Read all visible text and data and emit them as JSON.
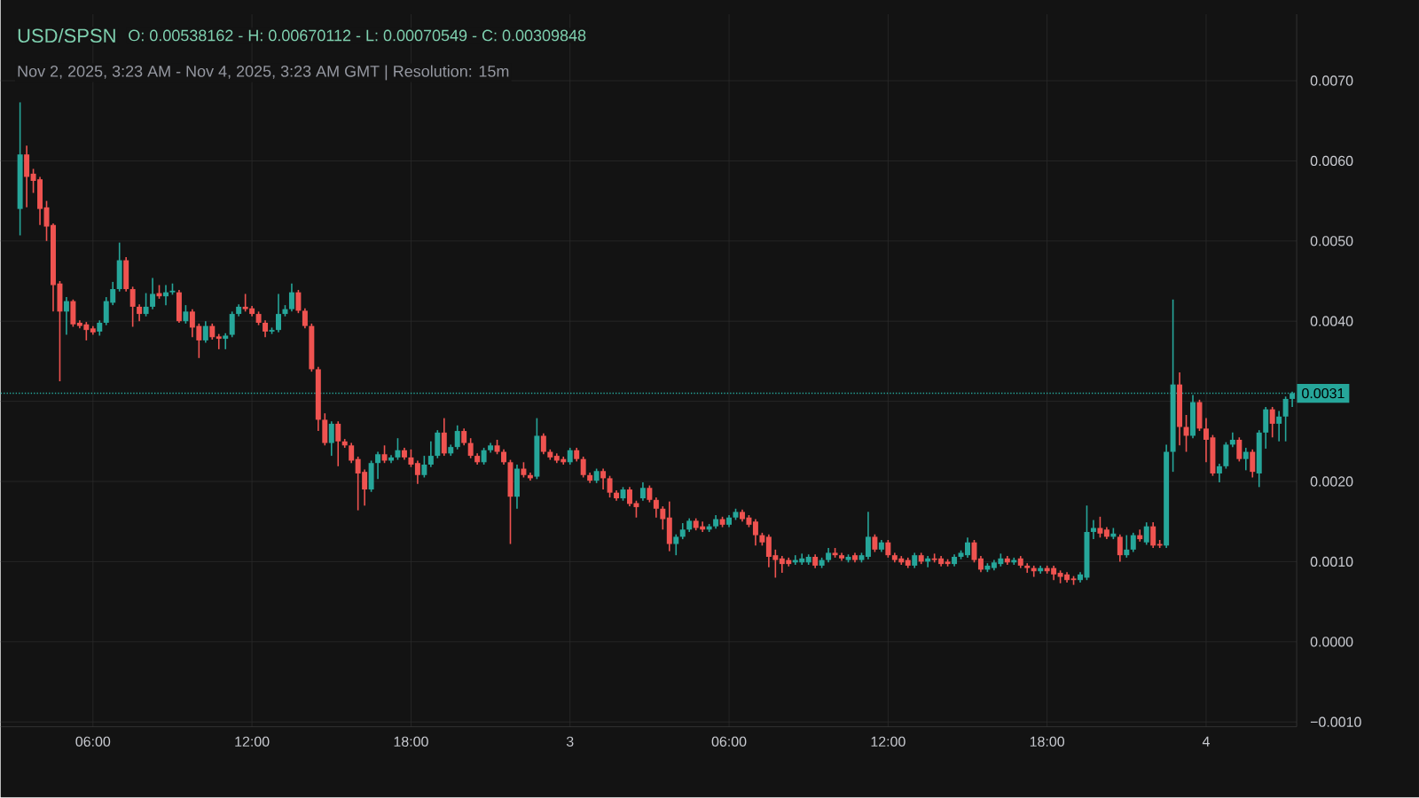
{
  "chart_data": {
    "type": "candlestick",
    "title": "USD/SPSN",
    "subtitle": "Nov 2, 2025, 3:23 AM - Nov 4, 2025, 3:23 AM GMT   |   Resolution: 15m",
    "annotations": [
      "O: 0.00538162 - H: 0.00670112 - L: 0.00070549 - C: 0.00309848"
    ],
    "x": [
      "2025-11-02T03:15",
      "2025-11-02T03:30",
      "2025-11-02T03:45",
      "2025-11-02T04:00",
      "2025-11-02T04:15",
      "2025-11-02T04:30",
      "2025-11-02T04:45",
      "2025-11-02T05:00",
      "2025-11-02T05:15",
      "2025-11-02T05:30",
      "2025-11-02T05:45",
      "2025-11-02T06:00",
      "2025-11-02T06:15",
      "2025-11-02T06:30",
      "2025-11-02T06:45",
      "2025-11-02T07:00",
      "2025-11-02T07:15",
      "2025-11-02T07:30",
      "2025-11-02T07:45",
      "2025-11-02T08:00",
      "2025-11-02T08:15",
      "2025-11-02T08:30",
      "2025-11-02T08:45",
      "2025-11-02T09:00",
      "2025-11-02T09:15",
      "2025-11-02T09:30",
      "2025-11-02T09:45",
      "2025-11-02T10:00",
      "2025-11-02T10:15",
      "2025-11-02T10:30",
      "2025-11-02T10:45",
      "2025-11-02T11:00",
      "2025-11-02T11:15",
      "2025-11-02T11:30",
      "2025-11-02T11:45",
      "2025-11-02T12:00",
      "2025-11-02T12:15",
      "2025-11-02T12:30",
      "2025-11-02T12:45",
      "2025-11-02T13:00",
      "2025-11-02T13:15",
      "2025-11-02T13:30",
      "2025-11-02T13:45",
      "2025-11-02T14:00",
      "2025-11-02T14:15",
      "2025-11-02T14:30",
      "2025-11-02T14:45",
      "2025-11-02T15:00",
      "2025-11-02T15:15",
      "2025-11-02T15:30",
      "2025-11-02T15:45",
      "2025-11-02T16:00",
      "2025-11-02T16:15",
      "2025-11-02T16:30",
      "2025-11-02T16:45",
      "2025-11-02T17:00",
      "2025-11-02T17:15",
      "2025-11-02T17:30",
      "2025-11-02T17:45",
      "2025-11-02T18:00",
      "2025-11-02T18:15",
      "2025-11-02T18:30",
      "2025-11-02T18:45",
      "2025-11-02T19:00",
      "2025-11-02T19:15",
      "2025-11-02T19:30",
      "2025-11-02T19:45",
      "2025-11-02T20:00",
      "2025-11-02T20:15",
      "2025-11-02T20:30",
      "2025-11-02T20:45",
      "2025-11-02T21:00",
      "2025-11-02T21:15",
      "2025-11-02T21:30",
      "2025-11-02T21:45",
      "2025-11-02T22:00",
      "2025-11-02T22:15",
      "2025-11-02T22:30",
      "2025-11-02T22:45",
      "2025-11-02T23:00",
      "2025-11-02T23:15",
      "2025-11-02T23:30",
      "2025-11-02T23:45",
      "2025-11-03T00:00",
      "2025-11-03T00:15",
      "2025-11-03T00:30",
      "2025-11-03T00:45",
      "2025-11-03T01:00",
      "2025-11-03T01:15",
      "2025-11-03T01:30",
      "2025-11-03T01:45",
      "2025-11-03T02:00",
      "2025-11-03T02:15",
      "2025-11-03T02:30",
      "2025-11-03T02:45",
      "2025-11-03T03:00",
      "2025-11-03T03:15",
      "2025-11-03T03:30",
      "2025-11-03T03:45",
      "2025-11-03T04:00",
      "2025-11-03T04:15",
      "2025-11-03T04:30",
      "2025-11-03T04:45",
      "2025-11-03T05:00",
      "2025-11-03T05:15",
      "2025-11-03T05:30",
      "2025-11-03T05:45",
      "2025-11-03T06:00",
      "2025-11-03T06:15",
      "2025-11-03T06:30",
      "2025-11-03T06:45",
      "2025-11-03T07:00",
      "2025-11-03T07:15",
      "2025-11-03T07:30",
      "2025-11-03T07:45",
      "2025-11-03T08:00",
      "2025-11-03T08:15",
      "2025-11-03T08:30",
      "2025-11-03T08:45",
      "2025-11-03T09:00",
      "2025-11-03T09:15",
      "2025-11-03T09:30",
      "2025-11-03T09:45",
      "2025-11-03T10:00",
      "2025-11-03T10:15",
      "2025-11-03T10:30",
      "2025-11-03T10:45",
      "2025-11-03T11:00",
      "2025-11-03T11:15",
      "2025-11-03T11:30",
      "2025-11-03T11:45",
      "2025-11-03T12:00",
      "2025-11-03T12:15",
      "2025-11-03T12:30",
      "2025-11-03T12:45",
      "2025-11-03T13:00",
      "2025-11-03T13:15",
      "2025-11-03T13:30",
      "2025-11-03T13:45",
      "2025-11-03T14:00",
      "2025-11-03T14:15",
      "2025-11-03T14:30",
      "2025-11-03T14:45",
      "2025-11-03T15:00",
      "2025-11-03T15:15",
      "2025-11-03T15:30",
      "2025-11-03T15:45",
      "2025-11-03T16:00",
      "2025-11-03T16:15",
      "2025-11-03T16:30",
      "2025-11-03T16:45",
      "2025-11-03T17:00",
      "2025-11-03T17:15",
      "2025-11-03T17:30",
      "2025-11-03T17:45",
      "2025-11-03T18:00",
      "2025-11-03T18:15",
      "2025-11-03T18:30",
      "2025-11-03T18:45",
      "2025-11-03T19:00",
      "2025-11-03T19:15",
      "2025-11-03T19:30",
      "2025-11-03T19:45",
      "2025-11-03T20:00",
      "2025-11-03T20:15",
      "2025-11-03T20:30",
      "2025-11-03T20:45",
      "2025-11-03T21:00",
      "2025-11-03T21:15",
      "2025-11-03T21:30",
      "2025-11-03T21:45",
      "2025-11-03T22:00",
      "2025-11-03T22:15",
      "2025-11-03T22:30",
      "2025-11-03T22:45",
      "2025-11-03T23:00",
      "2025-11-03T23:15",
      "2025-11-03T23:30",
      "2025-11-03T23:45",
      "2025-11-04T00:00",
      "2025-11-04T00:15",
      "2025-11-04T00:30",
      "2025-11-04T00:45",
      "2025-11-04T01:00",
      "2025-11-04T01:15",
      "2025-11-04T01:30",
      "2025-11-04T01:45",
      "2025-11-04T02:00",
      "2025-11-04T02:15",
      "2025-11-04T02:30",
      "2025-11-04T02:45",
      "2025-11-04T03:00",
      "2025-11-04T03:15"
    ],
    "ohlc": [
      [
        0.0054,
        0.00673,
        0.00507,
        0.00608
      ],
      [
        0.00608,
        0.00619,
        0.00542,
        0.0058
      ],
      [
        0.00584,
        0.0059,
        0.0056,
        0.00575
      ],
      [
        0.00577,
        0.0058,
        0.0052,
        0.0054
      ],
      [
        0.00542,
        0.0055,
        0.005,
        0.00518
      ],
      [
        0.0052,
        0.00522,
        0.00412,
        0.00445
      ],
      [
        0.00447,
        0.0045,
        0.00325,
        0.00412
      ],
      [
        0.00412,
        0.0043,
        0.00383,
        0.00425
      ],
      [
        0.00425,
        0.00427,
        0.00393,
        0.00396
      ],
      [
        0.00398,
        0.00401,
        0.00391,
        0.00394
      ],
      [
        0.00396,
        0.00399,
        0.00376,
        0.00389
      ],
      [
        0.00391,
        0.00394,
        0.00383,
        0.00386
      ],
      [
        0.00387,
        0.00401,
        0.00382,
        0.00398
      ],
      [
        0.00398,
        0.0043,
        0.00395,
        0.00425
      ],
      [
        0.00423,
        0.00449,
        0.0042,
        0.0044
      ],
      [
        0.0044,
        0.00498,
        0.00437,
        0.00476
      ],
      [
        0.00476,
        0.0048,
        0.00437,
        0.0044
      ],
      [
        0.0044,
        0.00443,
        0.00393,
        0.00418
      ],
      [
        0.00418,
        0.00421,
        0.004,
        0.00409
      ],
      [
        0.00409,
        0.00435,
        0.00406,
        0.00418
      ],
      [
        0.00418,
        0.00454,
        0.00415,
        0.00434
      ],
      [
        0.00435,
        0.00445,
        0.00428,
        0.00431
      ],
      [
        0.00431,
        0.00445,
        0.0042,
        0.00436
      ],
      [
        0.00436,
        0.00447,
        0.00433,
        0.00438
      ],
      [
        0.00436,
        0.00439,
        0.00398,
        0.004
      ],
      [
        0.004,
        0.0042,
        0.00397,
        0.00412
      ],
      [
        0.00412,
        0.00415,
        0.0038,
        0.00392
      ],
      [
        0.00394,
        0.00397,
        0.00354,
        0.00376
      ],
      [
        0.00376,
        0.004,
        0.00373,
        0.00394
      ],
      [
        0.00394,
        0.00397,
        0.00377,
        0.0038
      ],
      [
        0.00381,
        0.00384,
        0.00365,
        0.00378
      ],
      [
        0.00378,
        0.00385,
        0.00365,
        0.00382
      ],
      [
        0.00383,
        0.00412,
        0.0038,
        0.00409
      ],
      [
        0.00409,
        0.00421,
        0.00406,
        0.00418
      ],
      [
        0.00418,
        0.00434,
        0.00412,
        0.00415
      ],
      [
        0.00416,
        0.00419,
        0.00406,
        0.00409
      ],
      [
        0.00409,
        0.00412,
        0.00395,
        0.00398
      ],
      [
        0.00398,
        0.00401,
        0.0038,
        0.00387
      ],
      [
        0.00387,
        0.00392,
        0.00384,
        0.00389
      ],
      [
        0.00389,
        0.00434,
        0.00386,
        0.00409
      ],
      [
        0.00409,
        0.0042,
        0.00406,
        0.00415
      ],
      [
        0.00415,
        0.00447,
        0.00412,
        0.00436
      ],
      [
        0.00436,
        0.00439,
        0.0041,
        0.00413
      ],
      [
        0.00413,
        0.00416,
        0.00391,
        0.00394
      ],
      [
        0.00394,
        0.00397,
        0.00337,
        0.0034
      ],
      [
        0.0034,
        0.00343,
        0.00263,
        0.00277
      ],
      [
        0.00277,
        0.00285,
        0.00245,
        0.00248
      ],
      [
        0.00248,
        0.00275,
        0.00232,
        0.00272
      ],
      [
        0.00272,
        0.00275,
        0.00219,
        0.0025
      ],
      [
        0.0025,
        0.00253,
        0.00242,
        0.00245
      ],
      [
        0.00245,
        0.00248,
        0.00223,
        0.00226
      ],
      [
        0.00228,
        0.00231,
        0.00164,
        0.0021
      ],
      [
        0.00212,
        0.00215,
        0.0017,
        0.0019
      ],
      [
        0.0019,
        0.00226,
        0.00187,
        0.00223
      ],
      [
        0.00223,
        0.00237,
        0.00203,
        0.00234
      ],
      [
        0.00234,
        0.00245,
        0.00223,
        0.00226
      ],
      [
        0.00226,
        0.00233,
        0.00223,
        0.0023
      ],
      [
        0.0023,
        0.00254,
        0.00227,
        0.00239
      ],
      [
        0.00239,
        0.00242,
        0.00227,
        0.0023
      ],
      [
        0.0023,
        0.0024,
        0.00218,
        0.00221
      ],
      [
        0.00223,
        0.00226,
        0.00197,
        0.00208
      ],
      [
        0.00208,
        0.00232,
        0.00205,
        0.00221
      ],
      [
        0.00221,
        0.0025,
        0.00218,
        0.00232
      ],
      [
        0.00232,
        0.00264,
        0.00229,
        0.00261
      ],
      [
        0.00261,
        0.00279,
        0.00232,
        0.00235
      ],
      [
        0.00235,
        0.00246,
        0.00232,
        0.00243
      ],
      [
        0.00243,
        0.0027,
        0.0024,
        0.00263
      ],
      [
        0.00263,
        0.00266,
        0.00245,
        0.00248
      ],
      [
        0.00248,
        0.00254,
        0.00229,
        0.00232
      ],
      [
        0.00232,
        0.00235,
        0.00221,
        0.00224
      ],
      [
        0.00224,
        0.00242,
        0.00221,
        0.00239
      ],
      [
        0.00239,
        0.00248,
        0.00236,
        0.00245
      ],
      [
        0.00245,
        0.00252,
        0.00234,
        0.00237
      ],
      [
        0.00237,
        0.0024,
        0.00221,
        0.00224
      ],
      [
        0.00224,
        0.00227,
        0.00122,
        0.00181
      ],
      [
        0.00181,
        0.00221,
        0.00166,
        0.00216
      ],
      [
        0.00216,
        0.00224,
        0.00205,
        0.00208
      ],
      [
        0.00208,
        0.00211,
        0.00201,
        0.00204
      ],
      [
        0.00206,
        0.00279,
        0.00203,
        0.00257
      ],
      [
        0.00257,
        0.0026,
        0.00234,
        0.00237
      ],
      [
        0.00237,
        0.0024,
        0.00227,
        0.0023
      ],
      [
        0.00232,
        0.00235,
        0.00223,
        0.00226
      ],
      [
        0.00228,
        0.00231,
        0.00221,
        0.00224
      ],
      [
        0.00224,
        0.00242,
        0.00221,
        0.00239
      ],
      [
        0.00239,
        0.00242,
        0.00225,
        0.00228
      ],
      [
        0.00228,
        0.00231,
        0.00205,
        0.00208
      ],
      [
        0.00208,
        0.00211,
        0.00198,
        0.00201
      ],
      [
        0.00201,
        0.00216,
        0.00198,
        0.00213
      ],
      [
        0.00213,
        0.00216,
        0.0019,
        0.00204
      ],
      [
        0.00204,
        0.00207,
        0.0018,
        0.00186
      ],
      [
        0.00186,
        0.00189,
        0.00176,
        0.00179
      ],
      [
        0.00179,
        0.00193,
        0.00176,
        0.0019
      ],
      [
        0.0019,
        0.00193,
        0.00169,
        0.00172
      ],
      [
        0.00173,
        0.00176,
        0.00155,
        0.00168
      ],
      [
        0.00179,
        0.00199,
        0.00176,
        0.00192
      ],
      [
        0.00192,
        0.00195,
        0.00174,
        0.00177
      ],
      [
        0.00177,
        0.0018,
        0.00155,
        0.00166
      ],
      [
        0.00166,
        0.00169,
        0.0014,
        0.00153
      ],
      [
        0.00155,
        0.00175,
        0.00113,
        0.00122
      ],
      [
        0.00122,
        0.00134,
        0.00108,
        0.00131
      ],
      [
        0.00131,
        0.00148,
        0.00128,
        0.0014
      ],
      [
        0.0014,
        0.00154,
        0.00137,
        0.00151
      ],
      [
        0.00151,
        0.00154,
        0.00139,
        0.00142
      ],
      [
        0.00144,
        0.0015,
        0.00137,
        0.0014
      ],
      [
        0.0014,
        0.00147,
        0.00137,
        0.00144
      ],
      [
        0.00144,
        0.00158,
        0.00141,
        0.00153
      ],
      [
        0.00153,
        0.00156,
        0.00143,
        0.00146
      ],
      [
        0.00146,
        0.00158,
        0.00143,
        0.00155
      ],
      [
        0.00155,
        0.00166,
        0.00152,
        0.00162
      ],
      [
        0.00162,
        0.00165,
        0.0015,
        0.00153
      ],
      [
        0.00155,
        0.00158,
        0.00143,
        0.00146
      ],
      [
        0.0015,
        0.00153,
        0.0012,
        0.00133
      ],
      [
        0.00133,
        0.00136,
        0.0012,
        0.00124
      ],
      [
        0.00131,
        0.00134,
        0.00093,
        0.00106
      ],
      [
        0.00108,
        0.00115,
        0.0008,
        0.00102
      ],
      [
        0.00104,
        0.00107,
        0.00086,
        0.00097
      ],
      [
        0.00102,
        0.00105,
        0.00094,
        0.00097
      ],
      [
        0.00099,
        0.00108,
        0.00096,
        0.00102
      ],
      [
        0.00099,
        0.0011,
        0.00096,
        0.00104
      ],
      [
        0.00099,
        0.00109,
        0.00096,
        0.00106
      ],
      [
        0.00106,
        0.00109,
        0.00092,
        0.00095
      ],
      [
        0.00095,
        0.00105,
        0.00092,
        0.00102
      ],
      [
        0.00102,
        0.00117,
        0.00099,
        0.00111
      ],
      [
        0.00111,
        0.00117,
        0.00105,
        0.00108
      ],
      [
        0.00108,
        0.00111,
        0.00101,
        0.00104
      ],
      [
        0.00102,
        0.00109,
        0.00099,
        0.00106
      ],
      [
        0.00108,
        0.00111,
        0.00099,
        0.00102
      ],
      [
        0.00102,
        0.00111,
        0.00099,
        0.00108
      ],
      [
        0.00106,
        0.00162,
        0.00103,
        0.00131
      ],
      [
        0.00131,
        0.00134,
        0.00112,
        0.00115
      ],
      [
        0.00115,
        0.00127,
        0.00112,
        0.00124
      ],
      [
        0.00124,
        0.00127,
        0.00105,
        0.00108
      ],
      [
        0.00108,
        0.00111,
        0.00099,
        0.00102
      ],
      [
        0.00104,
        0.00107,
        0.00096,
        0.00099
      ],
      [
        0.00102,
        0.00105,
        0.00092,
        0.00095
      ],
      [
        0.00095,
        0.00111,
        0.00092,
        0.00108
      ],
      [
        0.00108,
        0.00111,
        0.00097,
        0.001
      ],
      [
        0.001,
        0.00107,
        0.00093,
        0.00104
      ],
      [
        0.00104,
        0.0011,
        0.00099,
        0.00102
      ],
      [
        0.00104,
        0.00107,
        0.00094,
        0.00097
      ],
      [
        0.001,
        0.00103,
        0.00094,
        0.00097
      ],
      [
        0.00097,
        0.00109,
        0.00094,
        0.00106
      ],
      [
        0.00106,
        0.00114,
        0.00103,
        0.00111
      ],
      [
        0.00108,
        0.0013,
        0.00105,
        0.00124
      ],
      [
        0.00124,
        0.00127,
        0.00099,
        0.00102
      ],
      [
        0.00104,
        0.00107,
        0.00087,
        0.0009
      ],
      [
        0.0009,
        0.00098,
        0.00087,
        0.00095
      ],
      [
        0.00092,
        0.00102,
        0.00089,
        0.00099
      ],
      [
        0.00097,
        0.0011,
        0.00094,
        0.00104
      ],
      [
        0.00104,
        0.00107,
        0.00096,
        0.00099
      ],
      [
        0.00099,
        0.00105,
        0.00096,
        0.00102
      ],
      [
        0.00104,
        0.00107,
        0.00092,
        0.00095
      ],
      [
        0.00095,
        0.00098,
        0.00086,
        0.00092
      ],
      [
        0.00092,
        0.00095,
        0.00081,
        0.00088
      ],
      [
        0.00088,
        0.00095,
        0.00085,
        0.00092
      ],
      [
        0.00092,
        0.00095,
        0.00085,
        0.00088
      ],
      [
        0.00092,
        0.00095,
        0.00077,
        0.00084
      ],
      [
        0.00086,
        0.00089,
        0.00073,
        0.00081
      ],
      [
        0.00084,
        0.00087,
        0.00074,
        0.00077
      ],
      [
        0.00079,
        0.00082,
        0.00071,
        0.00077
      ],
      [
        0.00077,
        0.00087,
        0.00074,
        0.00084
      ],
      [
        0.0008,
        0.0017,
        0.00077,
        0.00137
      ],
      [
        0.00137,
        0.00152,
        0.00128,
        0.00142
      ],
      [
        0.00142,
        0.00156,
        0.0013,
        0.00135
      ],
      [
        0.0014,
        0.00143,
        0.00128,
        0.00131
      ],
      [
        0.00131,
        0.00142,
        0.00128,
        0.00135
      ],
      [
        0.00131,
        0.00134,
        0.001,
        0.00108
      ],
      [
        0.00108,
        0.00133,
        0.00105,
        0.00115
      ],
      [
        0.00115,
        0.00136,
        0.00112,
        0.00133
      ],
      [
        0.00133,
        0.0014,
        0.00125,
        0.00128
      ],
      [
        0.00124,
        0.00149,
        0.00121,
        0.00144
      ],
      [
        0.00144,
        0.00149,
        0.00117,
        0.0012
      ],
      [
        0.00122,
        0.00127,
        0.00117,
        0.0012
      ],
      [
        0.0012,
        0.00246,
        0.00117,
        0.00237
      ],
      [
        0.00237,
        0.00427,
        0.00212,
        0.00321
      ],
      [
        0.00321,
        0.00336,
        0.00245,
        0.00268
      ],
      [
        0.00268,
        0.00283,
        0.00237,
        0.00257
      ],
      [
        0.00257,
        0.00308,
        0.00254,
        0.00299
      ],
      [
        0.00299,
        0.00302,
        0.00263,
        0.00266
      ],
      [
        0.00266,
        0.00279,
        0.00224,
        0.00252
      ],
      [
        0.00255,
        0.00258,
        0.00207,
        0.0021
      ],
      [
        0.0021,
        0.00222,
        0.00199,
        0.00219
      ],
      [
        0.00219,
        0.00249,
        0.00216,
        0.00246
      ],
      [
        0.00246,
        0.00261,
        0.00243,
        0.00252
      ],
      [
        0.00252,
        0.00255,
        0.00225,
        0.00228
      ],
      [
        0.00228,
        0.00242,
        0.00214,
        0.00237
      ],
      [
        0.00237,
        0.0024,
        0.00205,
        0.00212
      ],
      [
        0.0021,
        0.00264,
        0.00193,
        0.00261
      ],
      [
        0.00261,
        0.00293,
        0.00241,
        0.0029
      ],
      [
        0.0029,
        0.00293,
        0.00255,
        0.00272
      ],
      [
        0.00272,
        0.00288,
        0.0025,
        0.00281
      ],
      [
        0.00281,
        0.00306,
        0.0025,
        0.00303
      ],
      [
        0.00303,
        0.00312,
        0.00293,
        0.0031
      ]
    ],
    "colors": [
      "#26a69a",
      "#ef5350",
      "#ef5350",
      "#ef5350",
      "#ef5350",
      "#ef5350",
      "#ef5350",
      "#26a69a",
      "#ef5350",
      "#ef5350",
      "#ef5350",
      "#ef5350",
      "#26a69a",
      "#26a69a",
      "#26a69a",
      "#26a69a",
      "#ef5350",
      "#ef5350",
      "#ef5350",
      "#26a69a",
      "#26a69a",
      "#ef5350",
      "#26a69a",
      "#26a69a",
      "#ef5350",
      "#26a69a",
      "#ef5350",
      "#ef5350",
      "#26a69a",
      "#ef5350",
      "#ef5350",
      "#26a69a",
      "#26a69a",
      "#26a69a",
      "#ef5350",
      "#ef5350",
      "#ef5350",
      "#ef5350",
      "#26a69a",
      "#26a69a",
      "#26a69a",
      "#26a69a",
      "#ef5350",
      "#ef5350",
      "#ef5350",
      "#ef5350",
      "#ef5350",
      "#26a69a",
      "#ef5350",
      "#ef5350",
      "#ef5350",
      "#ef5350",
      "#ef5350",
      "#26a69a",
      "#26a69a",
      "#ef5350",
      "#26a69a",
      "#26a69a",
      "#ef5350",
      "#ef5350",
      "#ef5350",
      "#26a69a",
      "#26a69a",
      "#26a69a",
      "#ef5350",
      "#26a69a",
      "#26a69a",
      "#ef5350",
      "#ef5350",
      "#ef5350",
      "#26a69a",
      "#26a69a",
      "#ef5350",
      "#ef5350",
      "#ef5350",
      "#26a69a",
      "#ef5350",
      "#ef5350",
      "#26a69a",
      "#ef5350",
      "#ef5350",
      "#ef5350",
      "#ef5350",
      "#26a69a",
      "#ef5350",
      "#ef5350",
      "#ef5350",
      "#26a69a",
      "#ef5350",
      "#ef5350",
      "#ef5350",
      "#26a69a",
      "#ef5350",
      "#ef5350",
      "#26a69a",
      "#ef5350",
      "#ef5350",
      "#ef5350",
      "#ef5350",
      "#26a69a",
      "#26a69a",
      "#26a69a",
      "#ef5350",
      "#ef5350",
      "#26a69a",
      "#26a69a",
      "#ef5350",
      "#26a69a",
      "#26a69a",
      "#ef5350",
      "#ef5350",
      "#ef5350",
      "#ef5350",
      "#ef5350",
      "#ef5350",
      "#ef5350",
      "#ef5350",
      "#26a69a",
      "#26a69a",
      "#26a69a",
      "#ef5350",
      "#26a69a",
      "#26a69a",
      "#ef5350",
      "#ef5350",
      "#26a69a",
      "#ef5350",
      "#26a69a",
      "#26a69a",
      "#ef5350",
      "#26a69a",
      "#ef5350",
      "#ef5350",
      "#ef5350",
      "#ef5350",
      "#26a69a",
      "#ef5350",
      "#26a69a",
      "#ef5350",
      "#ef5350",
      "#ef5350",
      "#26a69a",
      "#26a69a",
      "#26a69a",
      "#ef5350",
      "#ef5350",
      "#26a69a",
      "#26a69a",
      "#26a69a",
      "#ef5350",
      "#26a69a",
      "#ef5350",
      "#ef5350",
      "#ef5350",
      "#26a69a",
      "#ef5350",
      "#ef5350",
      "#ef5350",
      "#ef5350",
      "#ef5350",
      "#26a69a",
      "#26a69a",
      "#26a69a",
      "#ef5350",
      "#ef5350",
      "#26a69a",
      "#ef5350",
      "#26a69a",
      "#26a69a",
      "#ef5350",
      "#26a69a",
      "#ef5350",
      "#ef5350",
      "#26a69a",
      "#26a69a",
      "#ef5350",
      "#ef5350",
      "#26a69a",
      "#ef5350",
      "#ef5350",
      "#ef5350",
      "#26a69a",
      "#26a69a",
      "#26a69a",
      "#ef5350",
      "#26a69a",
      "#ef5350",
      "#26a69a",
      "#26a69a",
      "#ef5350",
      "#26a69a",
      "#26a69a",
      "#26a69a"
    ],
    "xlim": [
      "2025-11-02T02:31",
      "2025-11-04T03:25"
    ],
    "xticks": [
      {
        "value": "2025-11-02T06:00",
        "label": "06:00"
      },
      {
        "value": "2025-11-02T12:00",
        "label": "12:00"
      },
      {
        "value": "2025-11-02T18:00",
        "label": "18:00"
      },
      {
        "value": "2025-11-03T00:00",
        "label": "3"
      },
      {
        "value": "2025-11-03T06:00",
        "label": "06:00"
      },
      {
        "value": "2025-11-03T12:00",
        "label": "12:00"
      },
      {
        "value": "2025-11-03T18:00",
        "label": "18:00"
      },
      {
        "value": "2025-11-04T00:00",
        "label": "4"
      }
    ],
    "ylim": [
      -0.00106,
      0.00783
    ],
    "yticks": [
      {
        "value": -0.001,
        "label": "−0.0010"
      },
      {
        "value": 0,
        "label": "0.0000"
      },
      {
        "value": 0.001,
        "label": "0.0010"
      },
      {
        "value": 0.002,
        "label": "0.0020"
      },
      {
        "value": 0.003,
        "label": null
      },
      {
        "value": 0.004,
        "label": "0.0040"
      },
      {
        "value": 0.005,
        "label": "0.0050"
      },
      {
        "value": 0.006,
        "label": "0.0060"
      },
      {
        "value": 0.007,
        "label": "0.0070"
      }
    ],
    "grid": true,
    "ref_lines": [
      {
        "axis": "y",
        "value": 0.0031,
        "label": "0.0031",
        "color": "#26a69a",
        "line_style": "dotted"
      }
    ]
  }
}
